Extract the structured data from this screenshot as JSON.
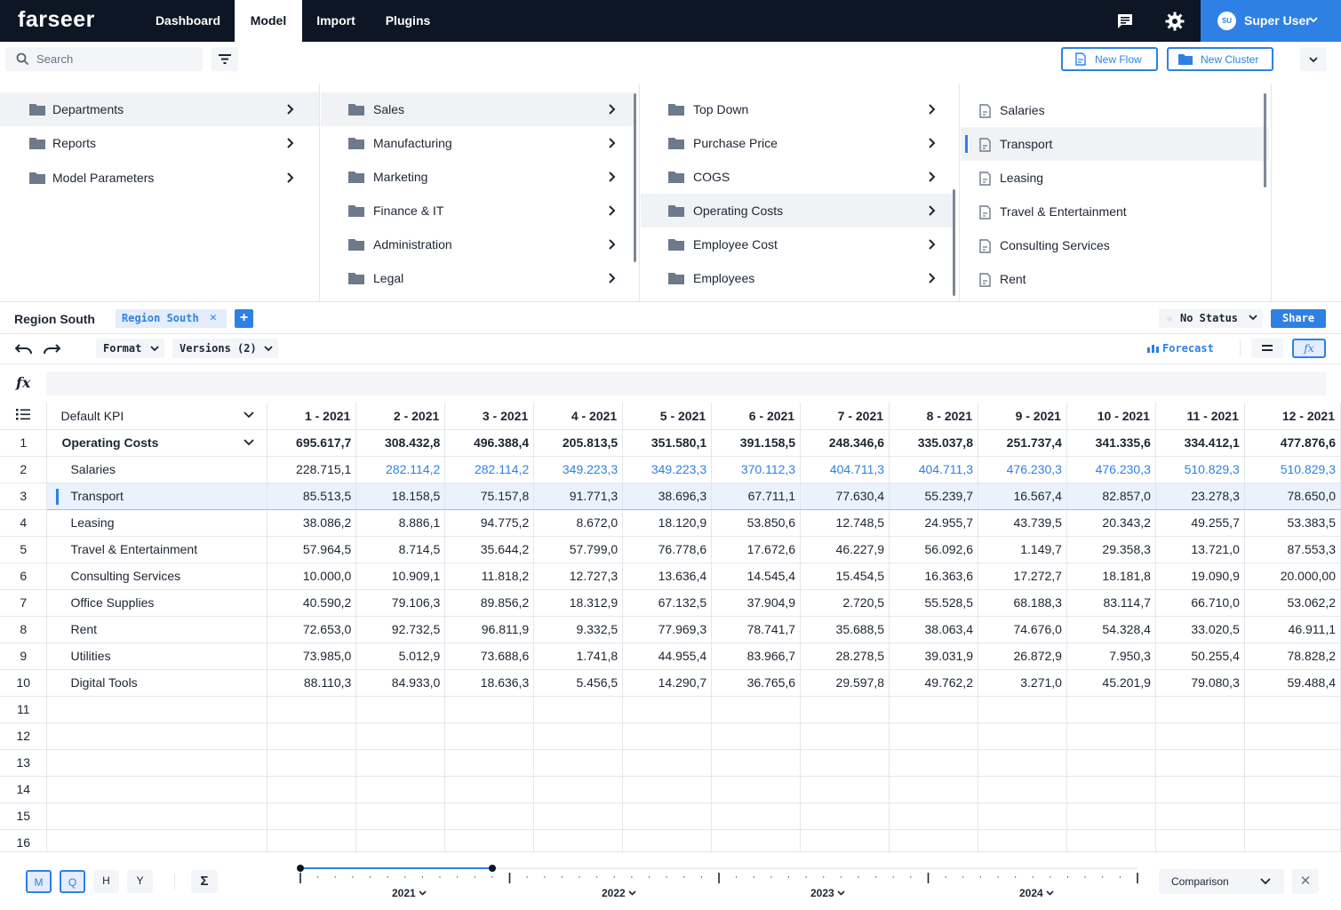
{
  "app": {
    "logo": "farseer"
  },
  "nav": {
    "tabs": [
      {
        "label": "Dashboard"
      },
      {
        "label": "Model"
      },
      {
        "label": "Import"
      },
      {
        "label": "Plugins"
      }
    ],
    "active_tab": "Model",
    "user": {
      "initials": "SU",
      "name": "Super User"
    }
  },
  "search": {
    "placeholder": "Search"
  },
  "actions": {
    "new_flow": "New Flow",
    "new_cluster": "New Cluster"
  },
  "finder": {
    "col1": [
      {
        "label": "Departments",
        "selected": true
      },
      {
        "label": "Reports"
      },
      {
        "label": "Model Parameters"
      }
    ],
    "col2": [
      {
        "label": "Sales",
        "selected": true
      },
      {
        "label": "Manufacturing"
      },
      {
        "label": "Marketing"
      },
      {
        "label": "Finance & IT"
      },
      {
        "label": "Administration"
      },
      {
        "label": "Legal"
      }
    ],
    "col3": [
      {
        "label": "Top Down"
      },
      {
        "label": "Purchase Price"
      },
      {
        "label": "COGS"
      },
      {
        "label": "Operating Costs",
        "selected": true
      },
      {
        "label": "Employee Cost"
      },
      {
        "label": "Employees"
      }
    ],
    "col4": [
      {
        "label": "Salaries"
      },
      {
        "label": "Transport",
        "selected": true
      },
      {
        "label": "Leasing"
      },
      {
        "label": "Travel & Entertainment"
      },
      {
        "label": "Consulting Services"
      },
      {
        "label": "Rent"
      }
    ]
  },
  "sheet": {
    "title": "Region South",
    "filter_chip": "Region South",
    "status": "No Status",
    "share": "Share"
  },
  "toolbar": {
    "format": "Format",
    "versions": "Versions (2)",
    "forecast": "Forecast"
  },
  "grid": {
    "kpi_header": "Default KPI",
    "columns": [
      "1 - 2021",
      "2 - 2021",
      "3 - 2021",
      "4 - 2021",
      "5 - 2021",
      "6 - 2021",
      "7 - 2021",
      "8 - 2021",
      "9 - 2021",
      "10 - 2021",
      "11 - 2021",
      "12 - 2021"
    ],
    "rows": [
      {
        "num": "1",
        "name": "Operating Costs",
        "top": true,
        "values": [
          "695.617,7",
          "308.432,8",
          "496.388,4",
          "205.813,5",
          "351.580,1",
          "391.158,5",
          "248.346,6",
          "335.037,8",
          "251.737,4",
          "341.335,6",
          "334.412,1",
          "477.876,6"
        ]
      },
      {
        "num": "2",
        "name": "Salaries",
        "values": [
          "228.715,1",
          "282.114,2",
          "282.114,2",
          "349.223,3",
          "349.223,3",
          "370.112,3",
          "404.711,3",
          "404.711,3",
          "476.230,3",
          "476.230,3",
          "510.829,3",
          "510.829,3"
        ],
        "blue_from": 1
      },
      {
        "num": "3",
        "name": "Transport",
        "selected": true,
        "values": [
          "85.513,5",
          "18.158,5",
          "75.157,8",
          "91.771,3",
          "38.696,3",
          "67.711,1",
          "77.630,4",
          "55.239,7",
          "16.567,4",
          "82.857,0",
          "23.278,3",
          "78.650,0"
        ]
      },
      {
        "num": "4",
        "name": "Leasing",
        "values": [
          "38.086,2",
          "8.886,1",
          "94.775,2",
          "8.672,0",
          "18.120,9",
          "53.850,6",
          "12.748,5",
          "24.955,7",
          "43.739,5",
          "20.343,2",
          "49.255,7",
          "53.383,5"
        ]
      },
      {
        "num": "5",
        "name": "Travel & Entertainment",
        "values": [
          "57.964,5",
          "8.714,5",
          "35.644,2",
          "57.799,0",
          "76.778,6",
          "17.672,6",
          "46.227,9",
          "56.092,6",
          "1.149,7",
          "29.358,3",
          "13.721,0",
          "87.553,3"
        ]
      },
      {
        "num": "6",
        "name": "Consulting Services",
        "values": [
          "10.000,0",
          "10.909,1",
          "11.818,2",
          "12.727,3",
          "13.636,4",
          "14.545,4",
          "15.454,5",
          "16.363,6",
          "17.272,7",
          "18.181,8",
          "19.090,9",
          "20.000,00"
        ]
      },
      {
        "num": "7",
        "name": "Office Supplies",
        "values": [
          "40.590,2",
          "79.106,3",
          "89.856,2",
          "18.312,9",
          "67.132,5",
          "37.904,9",
          "2.720,5",
          "55.528,5",
          "68.188,3",
          "83.114,7",
          "66.710,0",
          "53.062,2"
        ]
      },
      {
        "num": "8",
        "name": "Rent",
        "values": [
          "72.653,0",
          "92.732,5",
          "96.811,9",
          "9.332,5",
          "77.969,3",
          "78.741,7",
          "35.688,5",
          "38.063,4",
          "74.676,0",
          "54.328,4",
          "33.020,5",
          "46.911,1"
        ]
      },
      {
        "num": "9",
        "name": "Utilities",
        "values": [
          "73.985,0",
          "5.012,9",
          "73.688,6",
          "1.741,8",
          "44.955,4",
          "83.966,7",
          "28.278,5",
          "39.031,9",
          "26.872,9",
          "7.950,3",
          "50.255,4",
          "78.828,2"
        ]
      },
      {
        "num": "10",
        "name": "Digital Tools",
        "values": [
          "88.110,3",
          "84.933,0",
          "18.636,3",
          "5.456,5",
          "14.290,7",
          "36.765,6",
          "29.597,8",
          "49.762,2",
          "3.271,0",
          "45.201,9",
          "79.080,3",
          "59.488,4"
        ]
      }
    ],
    "empty_rows": [
      "11",
      "12",
      "13",
      "14",
      "15",
      "16"
    ]
  },
  "bottom": {
    "granularity": [
      {
        "label": "M",
        "active": true
      },
      {
        "label": "Q",
        "active": true
      },
      {
        "label": "H",
        "active": false
      },
      {
        "label": "Y",
        "active": false
      }
    ],
    "sigma": "Σ",
    "years": [
      "2021",
      "2022",
      "2023",
      "2024"
    ],
    "comparison": "Comparison"
  },
  "colors": {
    "accent": "#2f80e4",
    "topbar": "#0d1624",
    "selected_row": "#eaf2fd"
  }
}
